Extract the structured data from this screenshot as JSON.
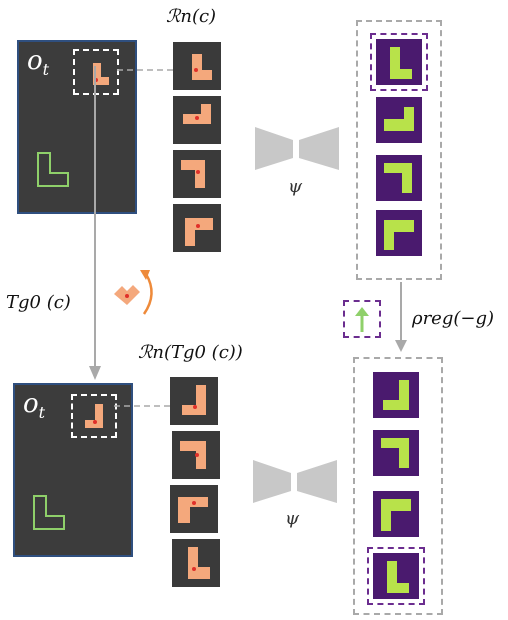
{
  "labels": {
    "obs_label": "o",
    "obs_subscript": "t",
    "rot_label_top": "ℛn(c)",
    "rot_label_bottom": "ℛn(Tg0 (c))",
    "transform_label": "Tg0 (c)",
    "encoder_label": "ψ",
    "reg_label": "ρreg(−g)"
  },
  "colors": {
    "panel_bg": "#3c3c3c",
    "panel_border": "#2f4f7f",
    "block": "#f4a87c",
    "dot": "#e0302a",
    "outline_L": "#8fd06a",
    "feature_bg": "#4a1a6e",
    "feature_shape": "#b8e24a",
    "rotate_arrow": "#ee8a3a",
    "reg_arrow": "#8fd06a",
    "purple_dash": "#6b2d8f",
    "grey_dash": "#a9a9a9"
  }
}
